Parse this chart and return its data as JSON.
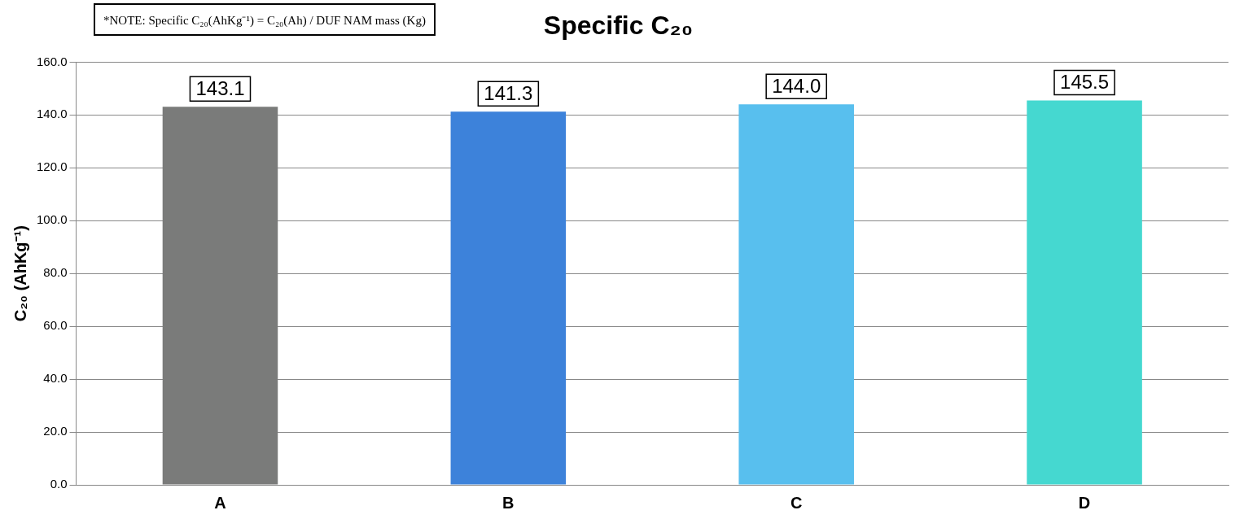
{
  "chart_data": {
    "type": "bar",
    "title": "Specific C₂₀",
    "ylabel": "C₂₀ (AhKg⁻¹)",
    "annotations": [
      "*NOTE: Specific C₂₀(AhKg⁻¹) = C₂₀(Ah) / DUF NAM mass (Kg)"
    ],
    "categories": [
      "A",
      "B",
      "C",
      "D"
    ],
    "values": [
      143.1,
      141.3,
      144.0,
      145.5
    ],
    "colors": [
      "#7a7b7a",
      "#3d82da",
      "#58bfee",
      "#45d8d0"
    ],
    "ylim": [
      0,
      160
    ],
    "yticks": [
      {
        "value": 0,
        "label": "0.0"
      },
      {
        "value": 20,
        "label": "20.0"
      },
      {
        "value": 40,
        "label": "40.0"
      },
      {
        "value": 60,
        "label": "60.0"
      },
      {
        "value": 80,
        "label": "80.0"
      },
      {
        "value": 100,
        "label": "100.0"
      },
      {
        "value": 120,
        "label": "120.0"
      },
      {
        "value": 140,
        "label": "140.0"
      },
      {
        "value": 160,
        "label": "160.0"
      }
    ],
    "value_labels": [
      "143.1",
      "141.3",
      "144.0",
      "145.5"
    ],
    "grid": "y",
    "legend": false
  }
}
